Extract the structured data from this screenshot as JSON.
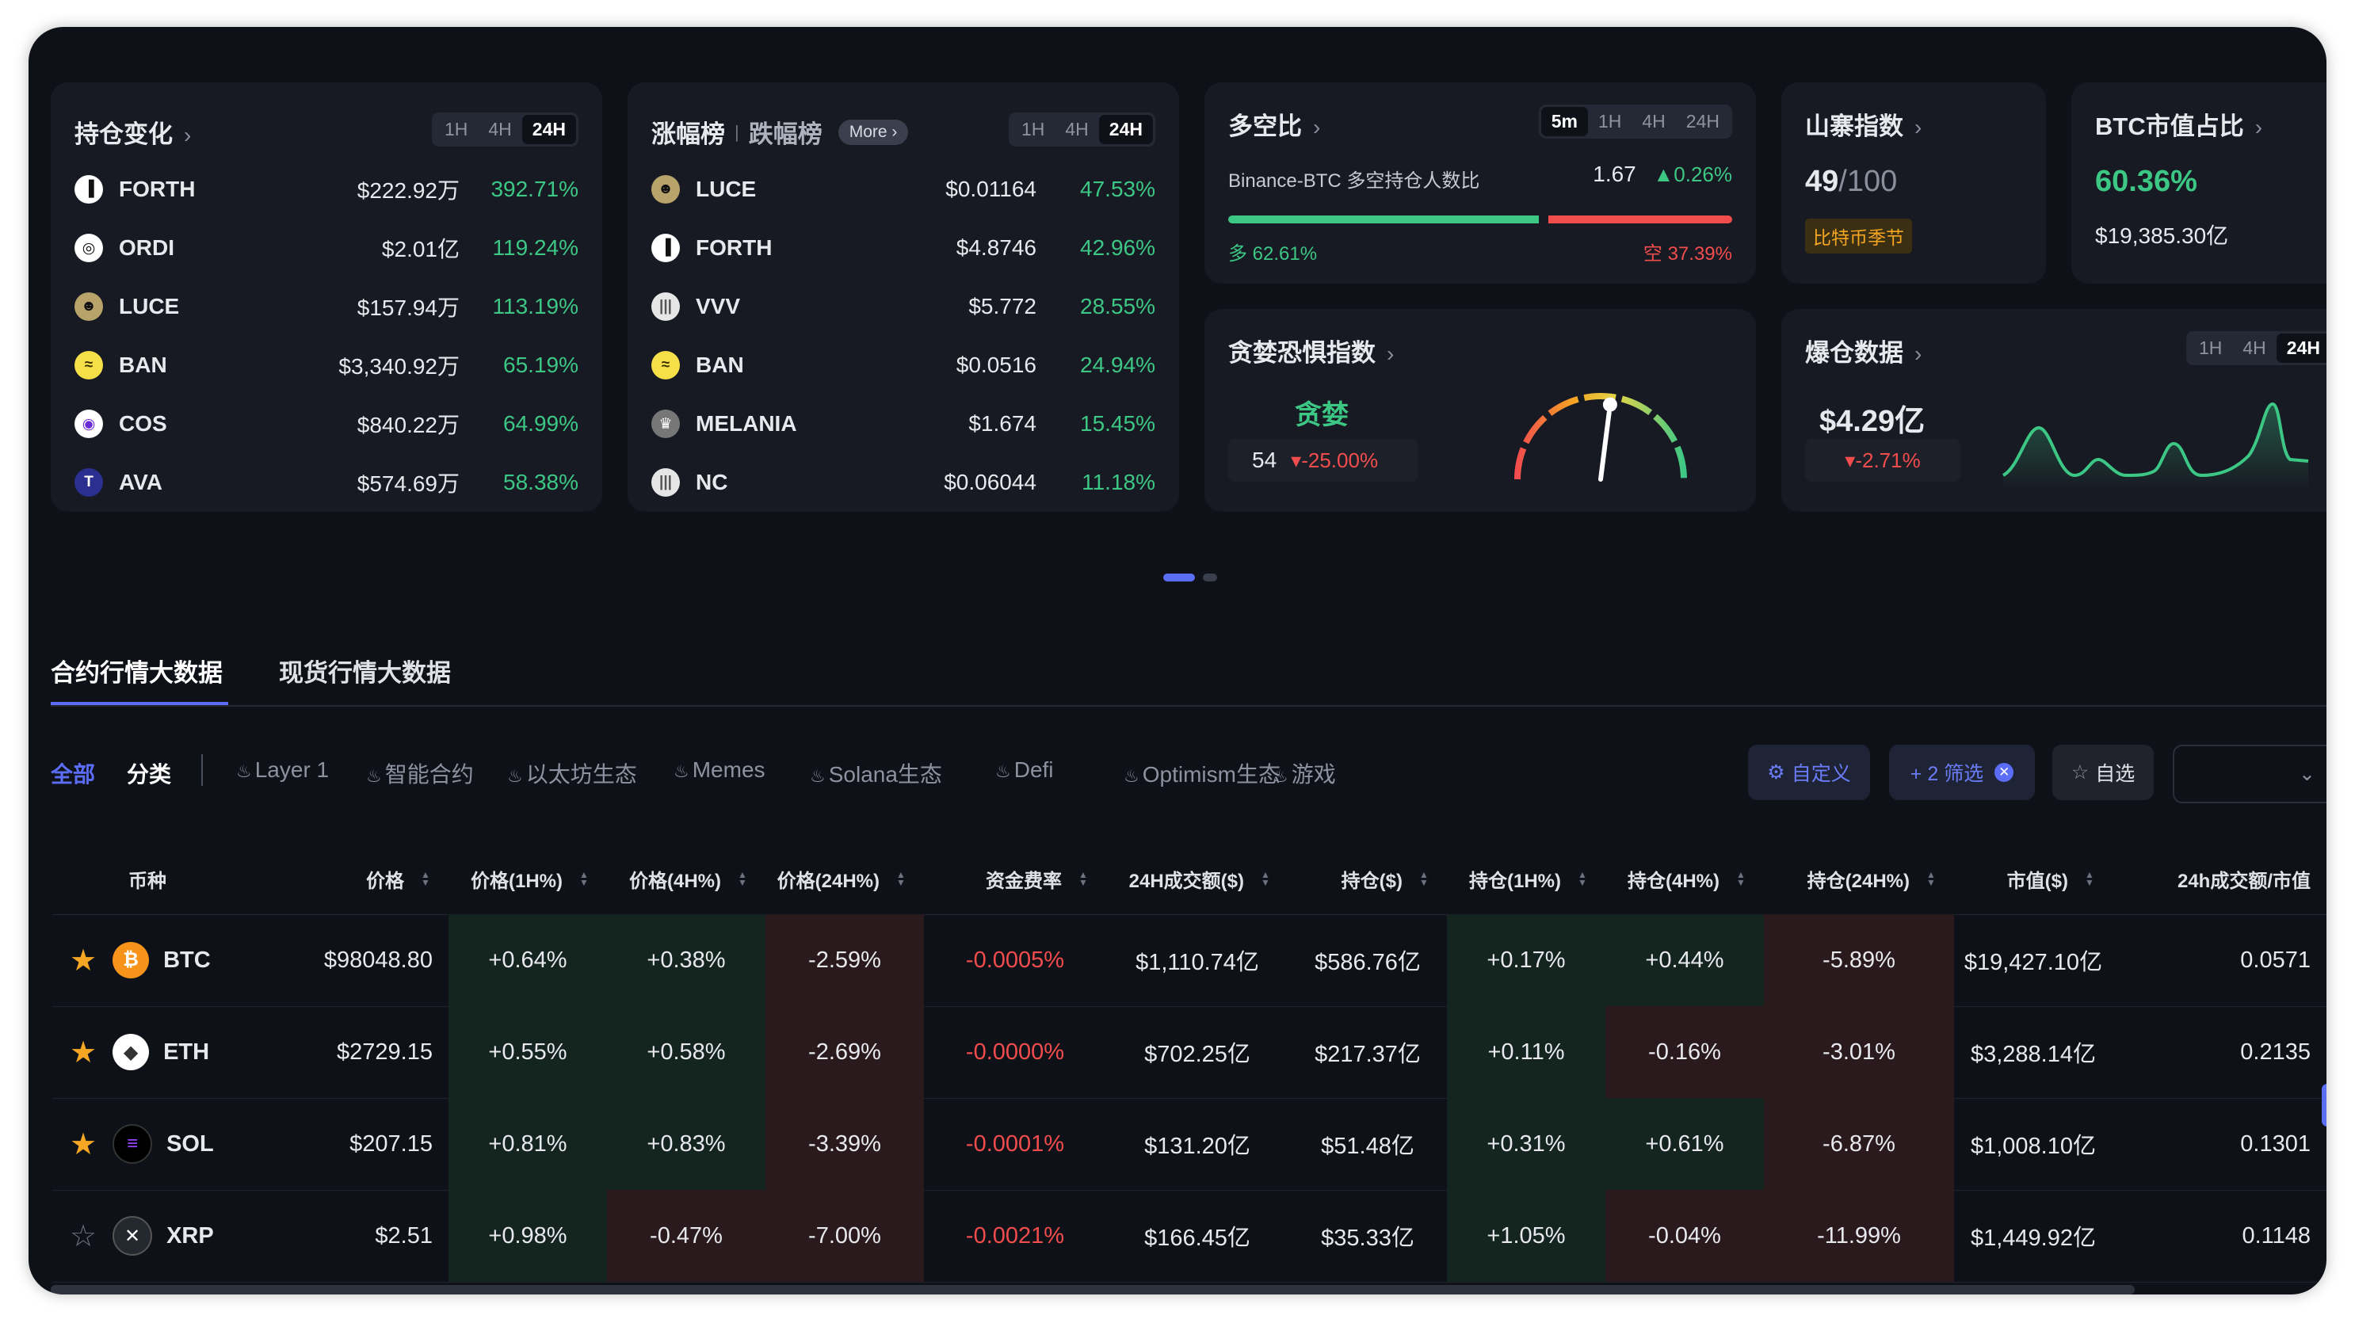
{
  "colors": {
    "bg": "#0f1118",
    "card": "#171a23",
    "green": "#3dc785",
    "red": "#f24d4d",
    "accent": "#5b6cf5",
    "gold": "#f5a623"
  },
  "holdings": {
    "title": "持仓变化",
    "tabs": [
      "1H",
      "4H",
      "24H"
    ],
    "active": "24H",
    "rows": [
      {
        "symbol": "FORTH",
        "value": "$222.92万",
        "pct": "392.71%",
        "icon": "forth-icon"
      },
      {
        "symbol": "ORDI",
        "value": "$2.01亿",
        "pct": "119.24%",
        "icon": "ordi-icon"
      },
      {
        "symbol": "LUCE",
        "value": "$157.94万",
        "pct": "113.19%",
        "icon": "luce-icon"
      },
      {
        "symbol": "BAN",
        "value": "$3,340.92万",
        "pct": "65.19%",
        "icon": "ban-icon"
      },
      {
        "symbol": "COS",
        "value": "$840.22万",
        "pct": "64.99%",
        "icon": "cos-icon"
      },
      {
        "symbol": "AVA",
        "value": "$574.69万",
        "pct": "58.38%",
        "icon": "ava-icon"
      }
    ]
  },
  "gainers": {
    "title": "涨幅榜",
    "title2": "跌幅榜",
    "more": "More",
    "tabs": [
      "1H",
      "4H",
      "24H"
    ],
    "active": "24H",
    "rows": [
      {
        "symbol": "LUCE",
        "value": "$0.01164",
        "pct": "47.53%"
      },
      {
        "symbol": "FORTH",
        "value": "$4.8746",
        "pct": "42.96%"
      },
      {
        "symbol": "VVV",
        "value": "$5.772",
        "pct": "28.55%"
      },
      {
        "symbol": "BAN",
        "value": "$0.0516",
        "pct": "24.94%"
      },
      {
        "symbol": "MELANIA",
        "value": "$1.674",
        "pct": "15.45%"
      },
      {
        "symbol": "NC",
        "value": "$0.06044",
        "pct": "11.18%"
      }
    ]
  },
  "longshort": {
    "title": "多空比",
    "tabs": [
      "5m",
      "1H",
      "4H",
      "24H"
    ],
    "active": "5m",
    "desc": "Binance-BTC 多空持仓人数比",
    "ratio": "1.67",
    "change": "0.26%",
    "long_label": "多 62.61%",
    "short_label": "空 37.39%",
    "long_fraction": 0.6261
  },
  "altcoin": {
    "title": "山寨指数",
    "value": "49",
    "max": "/100",
    "badge": "比特币季节"
  },
  "btcshare": {
    "title": "BTC市值占比",
    "pct": "60.36%",
    "cap": "$19,385.30亿"
  },
  "feargreed": {
    "title": "贪婪恐惧指数",
    "label": "贪婪",
    "value": "54",
    "change": "-25.00%",
    "level": 0.54
  },
  "liquidation": {
    "title": "爆仓数据",
    "tabs": [
      "1H",
      "4H",
      "24H"
    ],
    "active": "24H",
    "value": "$4.29亿",
    "change": "-2.71%"
  },
  "tabs": {
    "futures": "合约行情大数据",
    "spot": "现货行情大数据"
  },
  "filters": {
    "all": "全部",
    "category": "分类",
    "items": [
      "Layer 1",
      "智能合约",
      "以太坊生态",
      "Memes",
      "Solana生态",
      "Defi",
      "Optimism生态",
      "游戏"
    ]
  },
  "buttons": {
    "custom": "自定义",
    "filter": "+ 2 筛选",
    "watch": "自选"
  },
  "columns": [
    "币种",
    "价格",
    "价格(1H%)",
    "价格(4H%)",
    "价格(24H%)",
    "资金费率",
    "24H成交额($)",
    "持仓($)",
    "持仓(1H%)",
    "持仓(4H%)",
    "持仓(24H%)",
    "市值($)",
    "24h成交额/市值"
  ],
  "rows": [
    {
      "starred": true,
      "symbol": "BTC",
      "price": "$98048.80",
      "p1h": "+0.64%",
      "p4h": "+0.38%",
      "p24h": "-2.59%",
      "funding": "-0.0005%",
      "vol": "$1,110.74亿",
      "oi": "$586.76亿",
      "oi1h": "+0.17%",
      "oi4h": "+0.44%",
      "oi24h": "-5.89%",
      "mcap": "$19,427.10亿",
      "ratio": "0.0571"
    },
    {
      "starred": true,
      "symbol": "ETH",
      "price": "$2729.15",
      "p1h": "+0.55%",
      "p4h": "+0.58%",
      "p24h": "-2.69%",
      "funding": "-0.0000%",
      "vol": "$702.25亿",
      "oi": "$217.37亿",
      "oi1h": "+0.11%",
      "oi4h": "-0.16%",
      "oi24h": "-3.01%",
      "mcap": "$3,288.14亿",
      "ratio": "0.2135"
    },
    {
      "starred": true,
      "symbol": "SOL",
      "price": "$207.15",
      "p1h": "+0.81%",
      "p4h": "+0.83%",
      "p24h": "-3.39%",
      "funding": "-0.0001%",
      "vol": "$131.20亿",
      "oi": "$51.48亿",
      "oi1h": "+0.31%",
      "oi4h": "+0.61%",
      "oi24h": "-6.87%",
      "mcap": "$1,008.10亿",
      "ratio": "0.1301"
    },
    {
      "starred": false,
      "symbol": "XRP",
      "price": "$2.51",
      "p1h": "+0.98%",
      "p4h": "-0.47%",
      "p24h": "-7.00%",
      "funding": "-0.0021%",
      "vol": "$166.45亿",
      "oi": "$35.33亿",
      "oi1h": "+1.05%",
      "oi4h": "-0.04%",
      "oi24h": "-11.99%",
      "mcap": "$1,449.92亿",
      "ratio": "0.1148"
    }
  ]
}
